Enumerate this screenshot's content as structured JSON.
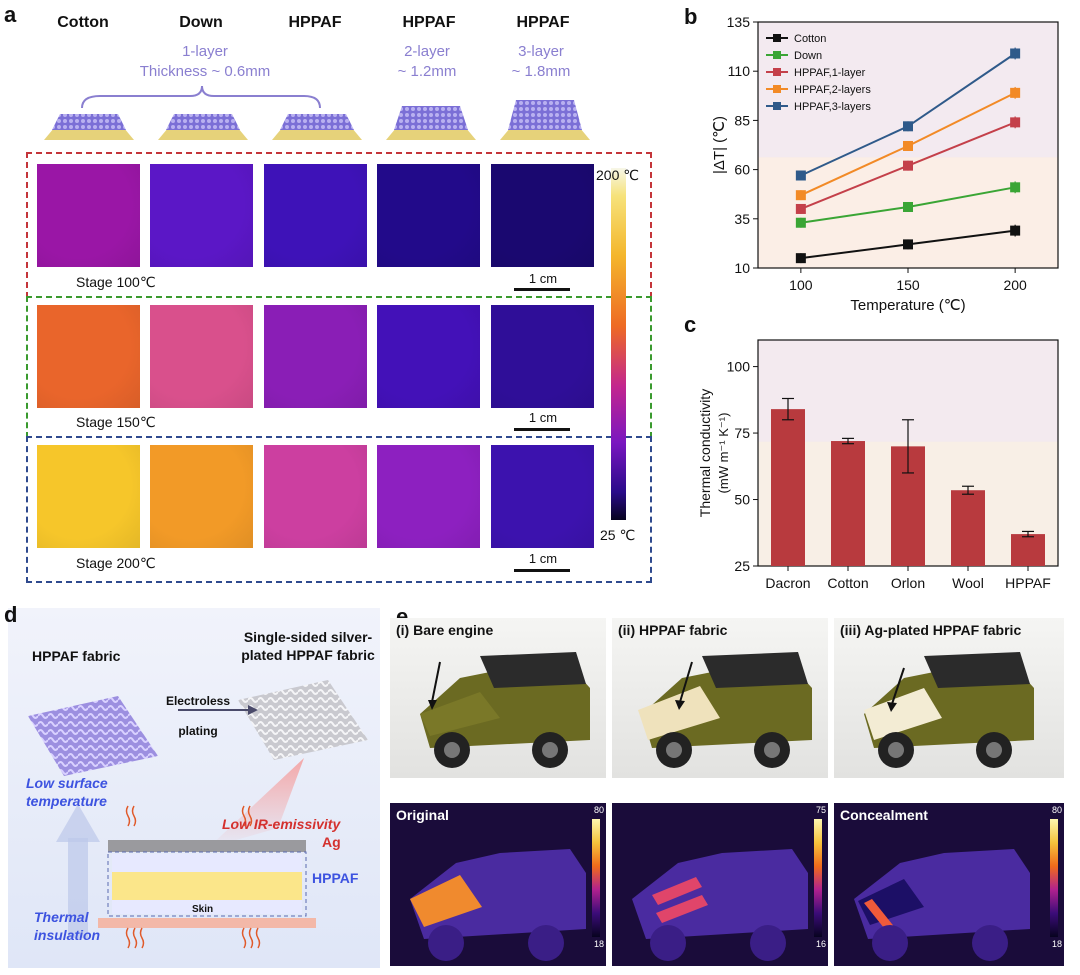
{
  "panel_labels": {
    "a": "a",
    "b": "b",
    "c": "c",
    "d": "d",
    "e": "e"
  },
  "panel_a": {
    "headers": [
      "Cotton",
      "Down",
      "HPPAF",
      "HPPAF",
      "HPPAF"
    ],
    "layer1_line1": "1-layer",
    "layer1_line2": "Thickness ~ 0.6mm",
    "layer2_line1": "2-layer",
    "layer2_line2": "~ 1.2mm",
    "layer3_line1": "3-layer",
    "layer3_line2": "~ 1.8mm",
    "stages": [
      "Stage 100℃",
      "Stage 150℃",
      "Stage 200℃"
    ],
    "scale_label": "1 cm",
    "colorbar_max": "200 ℃",
    "colorbar_min": "25 ℃",
    "tile_colors": [
      [
        "#9a16a6",
        "#5b17c6",
        "#3e12b8",
        "#220a8a",
        "#1a0870"
      ],
      [
        "#e9652b",
        "#d9508c",
        "#8a1eb6",
        "#4311b8",
        "#2f0e98"
      ],
      [
        "#f6c62a",
        "#f29a27",
        "#cc3fa0",
        "#8d20c0",
        "#3c12ae"
      ]
    ],
    "box_colors": {
      "stage1": "#c4353a",
      "stage2": "#3a9a2e",
      "stage3": "#2f4a8e"
    }
  },
  "chart_b": {
    "type": "line",
    "xlabel": "Temperature (℃)",
    "ylabel": "|ΔT| (℃)",
    "x": [
      100,
      150,
      200
    ],
    "xlim": [
      80,
      220
    ],
    "ylim": [
      10,
      135
    ],
    "yticks": [
      10,
      35,
      60,
      85,
      110,
      135
    ],
    "series": [
      {
        "name": "Cotton",
        "color": "#111111",
        "values": [
          15,
          22,
          29
        ],
        "err": [
          2.5,
          2.5,
          3
        ]
      },
      {
        "name": "Down",
        "color": "#3aa535",
        "values": [
          33,
          41,
          51
        ],
        "err": [
          2.5,
          2.5,
          3
        ]
      },
      {
        "name": "HPPAF,1-layer",
        "color": "#c4404a",
        "values": [
          40,
          62,
          84
        ],
        "err": [
          2.5,
          2.5,
          3
        ]
      },
      {
        "name": "HPPAF,2-layers",
        "color": "#f28a26",
        "values": [
          47,
          72,
          99
        ],
        "err": [
          2.5,
          2.5,
          3
        ]
      },
      {
        "name": "HPPAF,3-layers",
        "color": "#2f5a8a",
        "values": [
          57,
          82,
          119
        ],
        "err": [
          2.5,
          2.5,
          3
        ]
      }
    ]
  },
  "chart_c": {
    "type": "bar",
    "ylabel_line1": "Thermal conductivity",
    "ylabel_line2": "(mW m⁻¹ K⁻¹)",
    "categories": [
      "Dacron",
      "Cotton",
      "Orlon",
      "Wool",
      "HPPAF"
    ],
    "values": [
      84,
      72,
      70,
      53.5,
      37
    ],
    "errors": [
      4,
      1,
      10,
      1.5,
      1
    ],
    "ylim": [
      25,
      110
    ],
    "yticks": [
      25,
      50,
      75,
      100
    ],
    "bar_color": "#b83a3e"
  },
  "panel_d": {
    "fabric_label": "HPPAF fabric",
    "silver_line1": "Single-sided silver-",
    "silver_line2": "plated HPPAF fabric",
    "process_line1": "Electroless",
    "process_line2": "plating",
    "low_ir": "Low IR-emissivity",
    "low_surface_line1": "Low surface",
    "low_surface_line2": "temperature",
    "thermal_line1": "Thermal",
    "thermal_line2": "insulation",
    "ag_label": "Ag",
    "hppaf_label": "HPPAF",
    "skin_label": "Skin"
  },
  "panel_e": {
    "photo_titles": [
      "(i) Bare engine",
      "(ii) HPPAF fabric",
      "(iii) Ag-plated HPPAF fabric"
    ],
    "ir_titles": [
      "Original",
      "",
      "Concealment"
    ],
    "ir_max": [
      "80",
      "75",
      "80"
    ],
    "ir_min": [
      "18",
      "16",
      "18"
    ]
  }
}
